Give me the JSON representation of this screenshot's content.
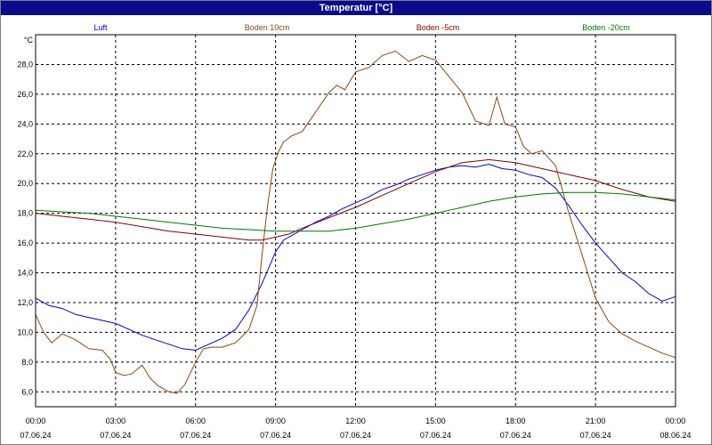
{
  "window": {
    "title": "Temperatur [°C]"
  },
  "chart_data": {
    "type": "line",
    "title": "Temperatur [°C]",
    "ylabel": "°C",
    "xlabel": "",
    "ylim": [
      5,
      30
    ],
    "xlim": [
      0,
      24
    ],
    "y_ticks": [
      "6,0",
      "8,0",
      "10,0",
      "12,0",
      "14,0",
      "16,0",
      "18,0",
      "20,0",
      "22,0",
      "24,0",
      "26,0",
      "28,0"
    ],
    "x_ticks": [
      {
        "time": "00:00",
        "date": "07.06.24"
      },
      {
        "time": "03:00",
        "date": "07.06.24"
      },
      {
        "time": "06:00",
        "date": "07.06.24"
      },
      {
        "time": "09:00",
        "date": "07.06.24"
      },
      {
        "time": "12:00",
        "date": "07.06.24"
      },
      {
        "time": "15:00",
        "date": "07.06.24"
      },
      {
        "time": "18:00",
        "date": "07.06.24"
      },
      {
        "time": "21:00",
        "date": "07.06.24"
      },
      {
        "time": "00:00",
        "date": "08.06.24"
      }
    ],
    "grid": true,
    "legend": "top",
    "series": [
      {
        "name": "Luft",
        "color": "#0000cc",
        "points": [
          [
            0,
            12.3
          ],
          [
            0.5,
            11.8
          ],
          [
            1,
            11.6
          ],
          [
            1.5,
            11.2
          ],
          [
            2,
            11.0
          ],
          [
            2.5,
            10.8
          ],
          [
            3,
            10.6
          ],
          [
            3.5,
            10.2
          ],
          [
            4,
            9.8
          ],
          [
            4.5,
            9.5
          ],
          [
            5,
            9.2
          ],
          [
            5.5,
            8.9
          ],
          [
            6,
            8.8
          ],
          [
            6.5,
            9.2
          ],
          [
            7,
            9.6
          ],
          [
            7.5,
            10.2
          ],
          [
            8,
            11.5
          ],
          [
            8.5,
            13.3
          ],
          [
            9,
            15.4
          ],
          [
            9.3,
            16.2
          ],
          [
            9.6,
            16.5
          ],
          [
            10,
            16.9
          ],
          [
            10.5,
            17.4
          ],
          [
            11,
            17.8
          ],
          [
            11.5,
            18.3
          ],
          [
            12,
            18.7
          ],
          [
            12.5,
            19.1
          ],
          [
            13,
            19.6
          ],
          [
            13.5,
            19.9
          ],
          [
            14,
            20.3
          ],
          [
            14.5,
            20.6
          ],
          [
            15,
            20.9
          ],
          [
            15.5,
            21.1
          ],
          [
            16,
            21.2
          ],
          [
            16.5,
            21.1
          ],
          [
            17,
            21.3
          ],
          [
            17.5,
            21.0
          ],
          [
            18,
            20.9
          ],
          [
            18.5,
            20.6
          ],
          [
            19,
            20.4
          ],
          [
            19.5,
            19.7
          ],
          [
            20,
            18.5
          ],
          [
            20.5,
            17.2
          ],
          [
            21,
            16.0
          ],
          [
            21.5,
            15.0
          ],
          [
            22,
            14.0
          ],
          [
            22.5,
            13.4
          ],
          [
            23,
            12.6
          ],
          [
            23.5,
            12.1
          ],
          [
            24,
            12.4
          ]
        ]
      },
      {
        "name": "Boden 10cm",
        "color": "#8b4513",
        "points": [
          [
            0,
            11.2
          ],
          [
            0.3,
            10.0
          ],
          [
            0.6,
            9.3
          ],
          [
            1,
            9.9
          ],
          [
            1.5,
            9.5
          ],
          [
            2,
            8.9
          ],
          [
            2.5,
            8.8
          ],
          [
            2.8,
            8.2
          ],
          [
            3,
            7.3
          ],
          [
            3.3,
            7.1
          ],
          [
            3.6,
            7.2
          ],
          [
            4,
            7.8
          ],
          [
            4.3,
            6.9
          ],
          [
            4.6,
            6.4
          ],
          [
            5,
            6.0
          ],
          [
            5.3,
            5.9
          ],
          [
            5.6,
            6.5
          ],
          [
            6,
            8.0
          ],
          [
            6.3,
            8.9
          ],
          [
            6.6,
            9.0
          ],
          [
            7,
            9.0
          ],
          [
            7.5,
            9.3
          ],
          [
            8,
            10.2
          ],
          [
            8.3,
            11.8
          ],
          [
            8.5,
            15.3
          ],
          [
            8.7,
            18.5
          ],
          [
            8.9,
            21.0
          ],
          [
            9.1,
            22.1
          ],
          [
            9.3,
            22.8
          ],
          [
            9.6,
            23.2
          ],
          [
            10,
            23.5
          ],
          [
            10.5,
            24.8
          ],
          [
            11,
            26.1
          ],
          [
            11.3,
            26.6
          ],
          [
            11.6,
            26.3
          ],
          [
            12,
            27.5
          ],
          [
            12.5,
            27.8
          ],
          [
            13,
            28.6
          ],
          [
            13.5,
            28.9
          ],
          [
            14,
            28.2
          ],
          [
            14.5,
            28.6
          ],
          [
            15,
            28.3
          ],
          [
            15.5,
            27.2
          ],
          [
            16,
            26.1
          ],
          [
            16.5,
            24.2
          ],
          [
            17,
            23.9
          ],
          [
            17.3,
            25.8
          ],
          [
            17.6,
            24.0
          ],
          [
            18,
            23.8
          ],
          [
            18.3,
            22.5
          ],
          [
            18.6,
            22.0
          ],
          [
            19,
            22.2
          ],
          [
            19.5,
            21.2
          ],
          [
            20,
            18.0
          ],
          [
            20.5,
            15.2
          ],
          [
            21,
            12.3
          ],
          [
            21.5,
            10.7
          ],
          [
            22,
            9.9
          ],
          [
            22.5,
            9.4
          ],
          [
            23,
            9.0
          ],
          [
            23.5,
            8.6
          ],
          [
            24,
            8.3
          ]
        ]
      },
      {
        "name": "Boden -5cm",
        "color": "#800000",
        "points": [
          [
            0,
            18.0
          ],
          [
            1,
            17.8
          ],
          [
            2,
            17.6
          ],
          [
            3,
            17.4
          ],
          [
            4,
            17.1
          ],
          [
            5,
            16.8
          ],
          [
            6,
            16.6
          ],
          [
            7,
            16.4
          ],
          [
            8,
            16.2
          ],
          [
            8.5,
            16.2
          ],
          [
            9,
            16.4
          ],
          [
            9.5,
            16.6
          ],
          [
            10,
            17.0
          ],
          [
            11,
            17.7
          ],
          [
            12,
            18.4
          ],
          [
            13,
            19.2
          ],
          [
            14,
            20.0
          ],
          [
            15,
            20.8
          ],
          [
            16,
            21.4
          ],
          [
            16.5,
            21.5
          ],
          [
            17,
            21.6
          ],
          [
            18,
            21.4
          ],
          [
            19,
            21.0
          ],
          [
            20,
            20.6
          ],
          [
            21,
            20.2
          ],
          [
            22,
            19.6
          ],
          [
            23,
            19.1
          ],
          [
            24,
            18.8
          ]
        ]
      },
      {
        "name": "Boden -20cm",
        "color": "#007700",
        "points": [
          [
            0,
            18.2
          ],
          [
            1,
            18.1
          ],
          [
            2,
            18.0
          ],
          [
            3,
            17.8
          ],
          [
            4,
            17.6
          ],
          [
            5,
            17.4
          ],
          [
            6,
            17.2
          ],
          [
            7,
            17.0
          ],
          [
            8,
            16.9
          ],
          [
            9,
            16.8
          ],
          [
            10,
            16.8
          ],
          [
            11,
            16.8
          ],
          [
            12,
            17.0
          ],
          [
            13,
            17.3
          ],
          [
            14,
            17.6
          ],
          [
            15,
            18.0
          ],
          [
            16,
            18.4
          ],
          [
            17,
            18.8
          ],
          [
            18,
            19.1
          ],
          [
            19,
            19.3
          ],
          [
            20,
            19.4
          ],
          [
            21,
            19.4
          ],
          [
            22,
            19.3
          ],
          [
            23,
            19.1
          ],
          [
            24,
            18.9
          ]
        ]
      }
    ]
  }
}
